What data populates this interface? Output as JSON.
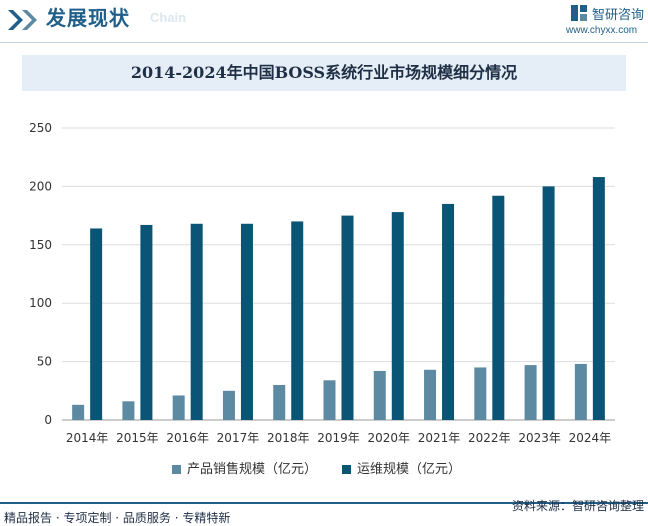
{
  "header": {
    "title": "发展现状",
    "subtitle": "Chain",
    "brand_name": "智研咨询",
    "brand_url": "www.chyxx.com"
  },
  "colors": {
    "brand": "#1f5f8a",
    "series_product": "#5d8aa3",
    "series_ops": "#0a5575",
    "grid": "#dddddd",
    "title_band": "#e5eef6"
  },
  "chart_data": {
    "type": "bar",
    "title": "2014-2024年中国BOSS系统行业市场规模细分情况",
    "xlabel": "",
    "ylabel": "",
    "ylim": [
      0,
      250
    ],
    "yticks": [
      0,
      50,
      100,
      150,
      200,
      250
    ],
    "categories": [
      "2014年",
      "2015年",
      "2016年",
      "2017年",
      "2018年",
      "2019年",
      "2020年",
      "2021年",
      "2022年",
      "2023年",
      "2024年"
    ],
    "series": [
      {
        "name": "产品销售规模（亿元）",
        "color": "#5d8aa3",
        "values": [
          13,
          16,
          21,
          25,
          30,
          34,
          42,
          43,
          45,
          47,
          48
        ]
      },
      {
        "name": "运维规模（亿元）",
        "color": "#0a5575",
        "values": [
          164,
          167,
          168,
          168,
          170,
          175,
          178,
          185,
          192,
          200,
          208
        ]
      }
    ],
    "grid": true,
    "legend": "bottom"
  },
  "footer": {
    "left": "精品报告 · 专项定制 · 品质服务 · 专精特新",
    "right": "资料来源：智研咨询整理"
  }
}
